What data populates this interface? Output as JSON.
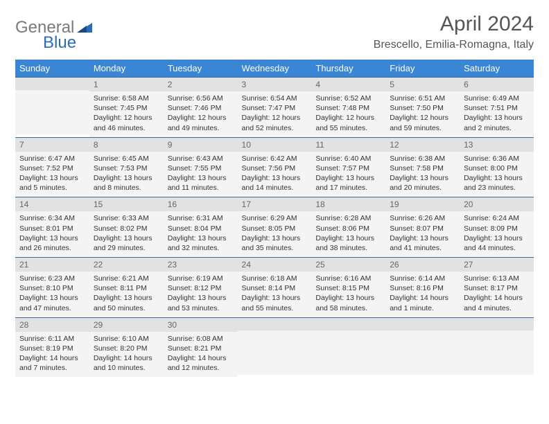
{
  "logo": {
    "text1": "General",
    "text2": "Blue"
  },
  "title": "April 2024",
  "location": "Brescello, Emilia-Romagna, Italy",
  "colors": {
    "header_bg": "#3a86d4",
    "header_text": "#ffffff",
    "daynum_bg": "#e2e2e2",
    "daybody_bg": "#f4f4f4",
    "border": "#3a6b9a",
    "logo_gray": "#7a7a7a",
    "logo_blue": "#2a6db8"
  },
  "weekdays": [
    "Sunday",
    "Monday",
    "Tuesday",
    "Wednesday",
    "Thursday",
    "Friday",
    "Saturday"
  ],
  "weeks": [
    [
      null,
      {
        "n": "1",
        "sr": "Sunrise: 6:58 AM",
        "ss": "Sunset: 7:45 PM",
        "d1": "Daylight: 12 hours",
        "d2": "and 46 minutes."
      },
      {
        "n": "2",
        "sr": "Sunrise: 6:56 AM",
        "ss": "Sunset: 7:46 PM",
        "d1": "Daylight: 12 hours",
        "d2": "and 49 minutes."
      },
      {
        "n": "3",
        "sr": "Sunrise: 6:54 AM",
        "ss": "Sunset: 7:47 PM",
        "d1": "Daylight: 12 hours",
        "d2": "and 52 minutes."
      },
      {
        "n": "4",
        "sr": "Sunrise: 6:52 AM",
        "ss": "Sunset: 7:48 PM",
        "d1": "Daylight: 12 hours",
        "d2": "and 55 minutes."
      },
      {
        "n": "5",
        "sr": "Sunrise: 6:51 AM",
        "ss": "Sunset: 7:50 PM",
        "d1": "Daylight: 12 hours",
        "d2": "and 59 minutes."
      },
      {
        "n": "6",
        "sr": "Sunrise: 6:49 AM",
        "ss": "Sunset: 7:51 PM",
        "d1": "Daylight: 13 hours",
        "d2": "and 2 minutes."
      }
    ],
    [
      {
        "n": "7",
        "sr": "Sunrise: 6:47 AM",
        "ss": "Sunset: 7:52 PM",
        "d1": "Daylight: 13 hours",
        "d2": "and 5 minutes."
      },
      {
        "n": "8",
        "sr": "Sunrise: 6:45 AM",
        "ss": "Sunset: 7:53 PM",
        "d1": "Daylight: 13 hours",
        "d2": "and 8 minutes."
      },
      {
        "n": "9",
        "sr": "Sunrise: 6:43 AM",
        "ss": "Sunset: 7:55 PM",
        "d1": "Daylight: 13 hours",
        "d2": "and 11 minutes."
      },
      {
        "n": "10",
        "sr": "Sunrise: 6:42 AM",
        "ss": "Sunset: 7:56 PM",
        "d1": "Daylight: 13 hours",
        "d2": "and 14 minutes."
      },
      {
        "n": "11",
        "sr": "Sunrise: 6:40 AM",
        "ss": "Sunset: 7:57 PM",
        "d1": "Daylight: 13 hours",
        "d2": "and 17 minutes."
      },
      {
        "n": "12",
        "sr": "Sunrise: 6:38 AM",
        "ss": "Sunset: 7:58 PM",
        "d1": "Daylight: 13 hours",
        "d2": "and 20 minutes."
      },
      {
        "n": "13",
        "sr": "Sunrise: 6:36 AM",
        "ss": "Sunset: 8:00 PM",
        "d1": "Daylight: 13 hours",
        "d2": "and 23 minutes."
      }
    ],
    [
      {
        "n": "14",
        "sr": "Sunrise: 6:34 AM",
        "ss": "Sunset: 8:01 PM",
        "d1": "Daylight: 13 hours",
        "d2": "and 26 minutes."
      },
      {
        "n": "15",
        "sr": "Sunrise: 6:33 AM",
        "ss": "Sunset: 8:02 PM",
        "d1": "Daylight: 13 hours",
        "d2": "and 29 minutes."
      },
      {
        "n": "16",
        "sr": "Sunrise: 6:31 AM",
        "ss": "Sunset: 8:04 PM",
        "d1": "Daylight: 13 hours",
        "d2": "and 32 minutes."
      },
      {
        "n": "17",
        "sr": "Sunrise: 6:29 AM",
        "ss": "Sunset: 8:05 PM",
        "d1": "Daylight: 13 hours",
        "d2": "and 35 minutes."
      },
      {
        "n": "18",
        "sr": "Sunrise: 6:28 AM",
        "ss": "Sunset: 8:06 PM",
        "d1": "Daylight: 13 hours",
        "d2": "and 38 minutes."
      },
      {
        "n": "19",
        "sr": "Sunrise: 6:26 AM",
        "ss": "Sunset: 8:07 PM",
        "d1": "Daylight: 13 hours",
        "d2": "and 41 minutes."
      },
      {
        "n": "20",
        "sr": "Sunrise: 6:24 AM",
        "ss": "Sunset: 8:09 PM",
        "d1": "Daylight: 13 hours",
        "d2": "and 44 minutes."
      }
    ],
    [
      {
        "n": "21",
        "sr": "Sunrise: 6:23 AM",
        "ss": "Sunset: 8:10 PM",
        "d1": "Daylight: 13 hours",
        "d2": "and 47 minutes."
      },
      {
        "n": "22",
        "sr": "Sunrise: 6:21 AM",
        "ss": "Sunset: 8:11 PM",
        "d1": "Daylight: 13 hours",
        "d2": "and 50 minutes."
      },
      {
        "n": "23",
        "sr": "Sunrise: 6:19 AM",
        "ss": "Sunset: 8:12 PM",
        "d1": "Daylight: 13 hours",
        "d2": "and 53 minutes."
      },
      {
        "n": "24",
        "sr": "Sunrise: 6:18 AM",
        "ss": "Sunset: 8:14 PM",
        "d1": "Daylight: 13 hours",
        "d2": "and 55 minutes."
      },
      {
        "n": "25",
        "sr": "Sunrise: 6:16 AM",
        "ss": "Sunset: 8:15 PM",
        "d1": "Daylight: 13 hours",
        "d2": "and 58 minutes."
      },
      {
        "n": "26",
        "sr": "Sunrise: 6:14 AM",
        "ss": "Sunset: 8:16 PM",
        "d1": "Daylight: 14 hours",
        "d2": "and 1 minute."
      },
      {
        "n": "27",
        "sr": "Sunrise: 6:13 AM",
        "ss": "Sunset: 8:17 PM",
        "d1": "Daylight: 14 hours",
        "d2": "and 4 minutes."
      }
    ],
    [
      {
        "n": "28",
        "sr": "Sunrise: 6:11 AM",
        "ss": "Sunset: 8:19 PM",
        "d1": "Daylight: 14 hours",
        "d2": "and 7 minutes."
      },
      {
        "n": "29",
        "sr": "Sunrise: 6:10 AM",
        "ss": "Sunset: 8:20 PM",
        "d1": "Daylight: 14 hours",
        "d2": "and 10 minutes."
      },
      {
        "n": "30",
        "sr": "Sunrise: 6:08 AM",
        "ss": "Sunset: 8:21 PM",
        "d1": "Daylight: 14 hours",
        "d2": "and 12 minutes."
      },
      null,
      null,
      null,
      null
    ]
  ]
}
